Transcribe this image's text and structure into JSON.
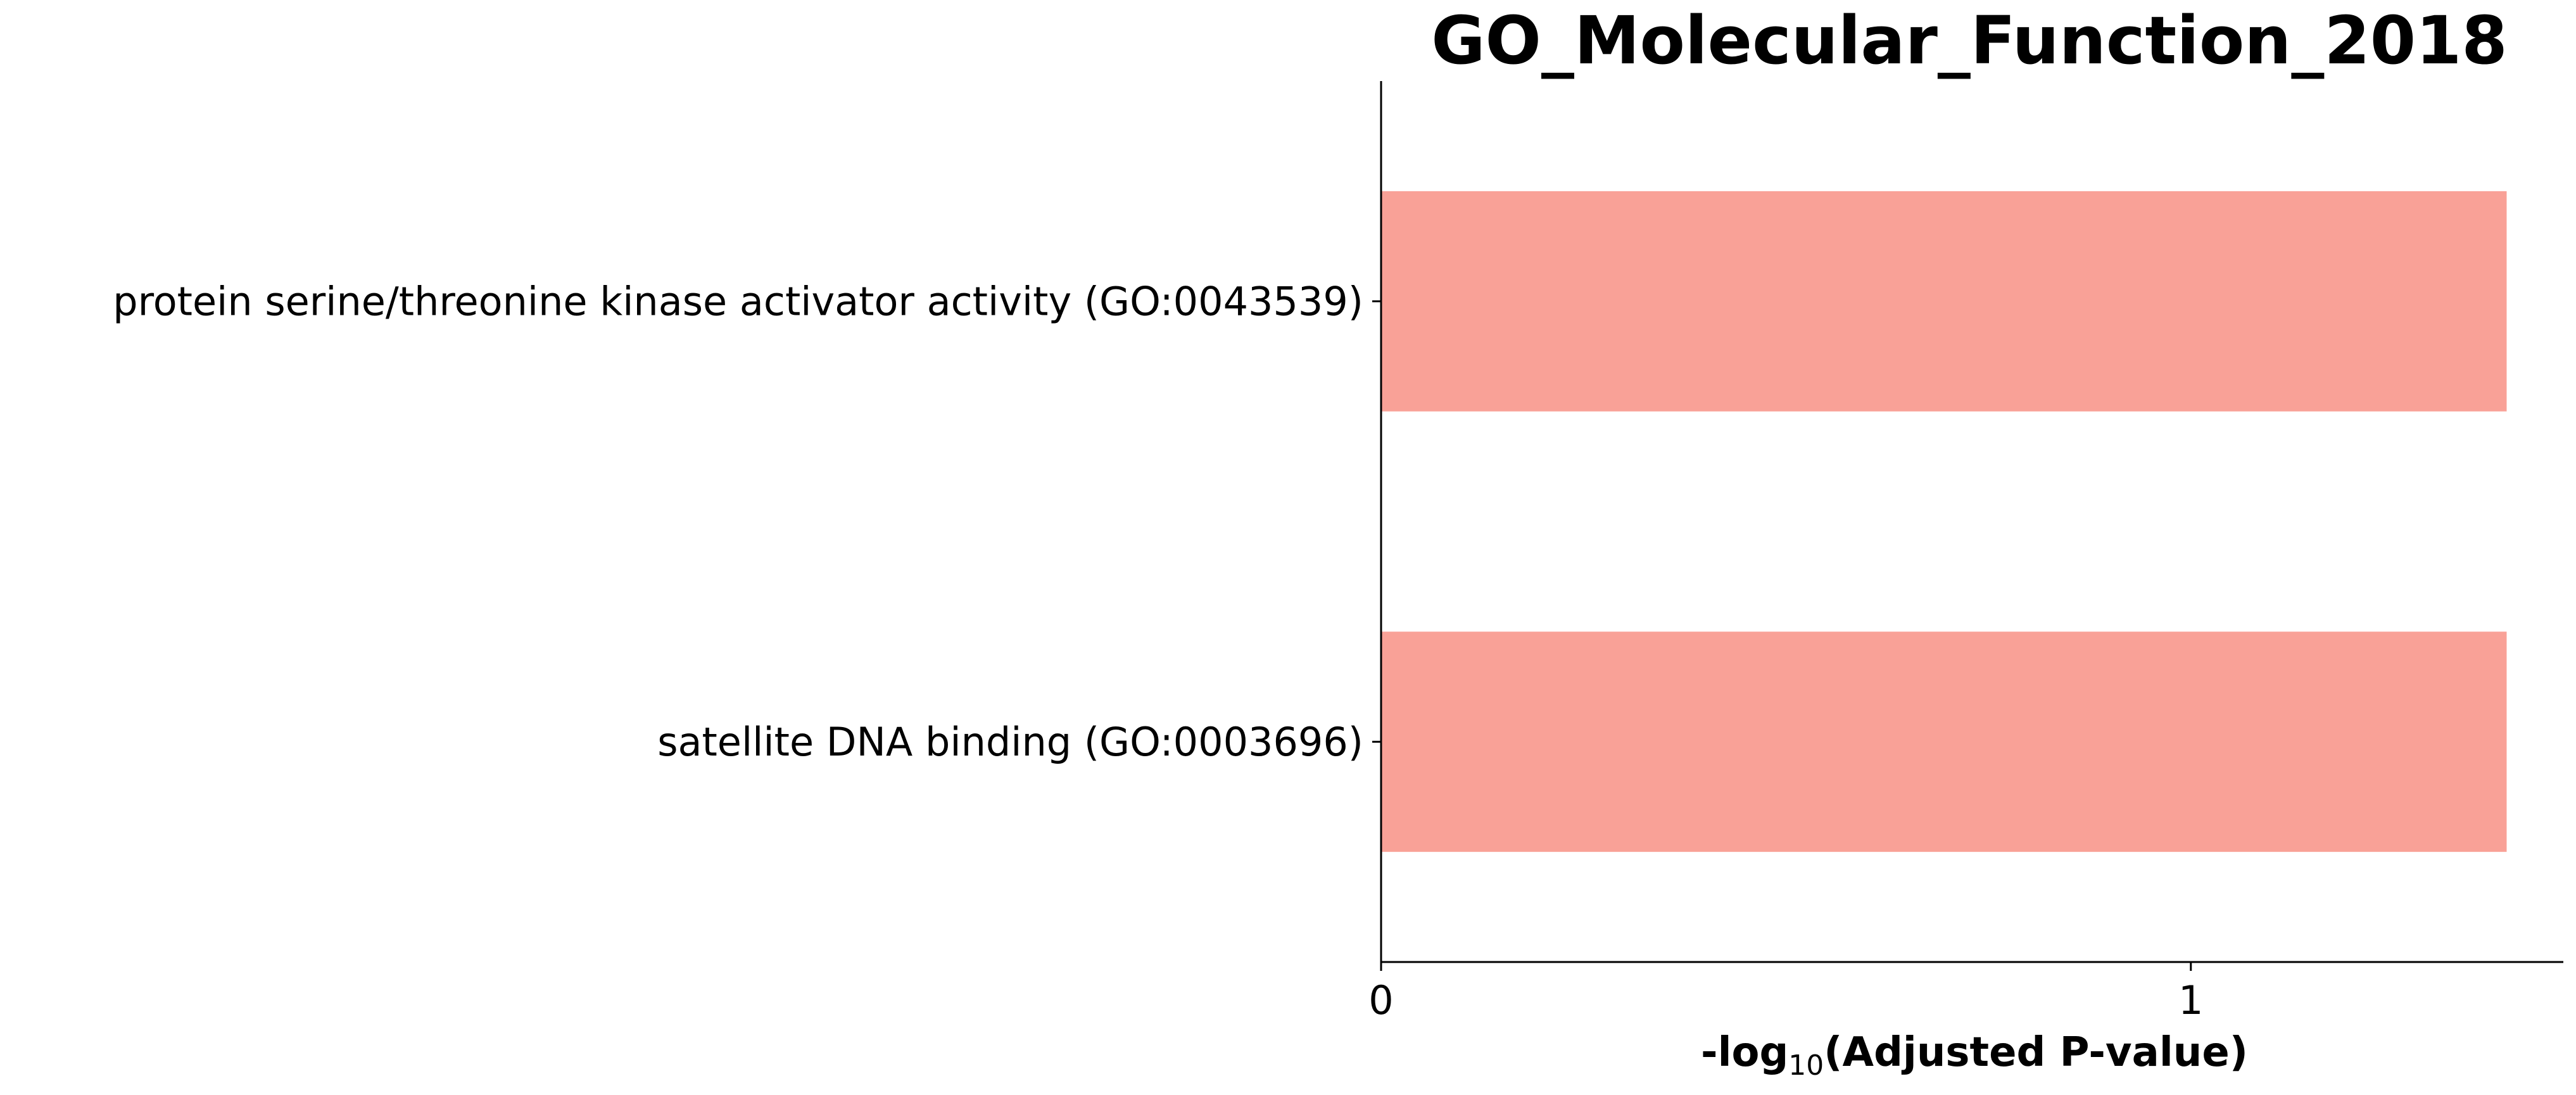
{
  "chart_data": {
    "type": "bar",
    "orientation": "horizontal",
    "title": "GO_Molecular_Function_2018",
    "xlabel": {
      "prefix": "-log",
      "subscript": "10",
      "suffix": "(Adjusted P-value)"
    },
    "ylabel": "",
    "categories": [
      "protein serine/threonine kinase activator activity (GO:0043539)",
      "satellite DNA binding (GO:0003696)"
    ],
    "values": [
      1.39,
      1.39
    ],
    "xlim": [
      0,
      1.46
    ],
    "xticks": [
      0,
      1
    ],
    "xtick_labels": [
      "0",
      "1"
    ],
    "bar_color": "#f9a197",
    "axis_color": "#000000",
    "grid": false,
    "legend": "none"
  }
}
